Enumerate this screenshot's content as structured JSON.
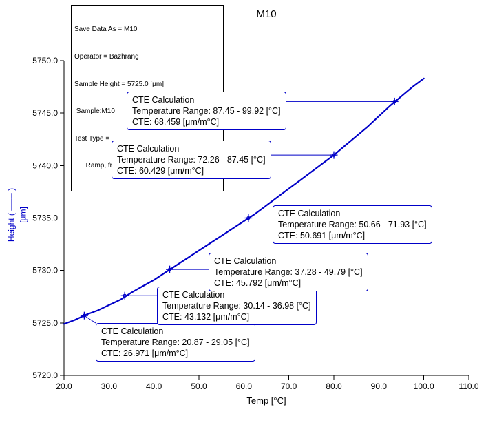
{
  "title": "M10",
  "header_box": {
    "lines": [
      "Save Data As = M10",
      "Operator = Bazhrang",
      "Sample Height = 5725.0 [μm]",
      " Sample:M10",
      "Test Type =",
      "      Ramp, from 20 [°C] to 100 [°C] at 3 [°C/min]"
    ]
  },
  "chart_data": {
    "type": "line",
    "title": "M10",
    "xlabel": "Temp [°C]",
    "ylabel": "Height [μm]",
    "ylabel_lines": [
      "Height ( ─── )",
      "[μm]"
    ],
    "xlim": [
      20,
      110
    ],
    "ylim": [
      5720,
      5750
    ],
    "grid": false,
    "legend": "none",
    "line_color": "#0000C8",
    "x_ticks": [
      20,
      30,
      40,
      50,
      60,
      70,
      80,
      90,
      100,
      110
    ],
    "x_tick_labels": [
      "20.0",
      "30.0",
      "40.0",
      "50.0",
      "60.0",
      "70.0",
      "80.0",
      "90.0",
      "100.0",
      "110.0"
    ],
    "y_ticks": [
      5720,
      5725,
      5730,
      5735,
      5740,
      5745,
      5750
    ],
    "y_tick_labels": [
      "5720.0",
      "5725.0",
      "5730.0",
      "5735.0",
      "5740.0",
      "5745.0",
      "5750.0"
    ],
    "series": [
      {
        "name": "Height",
        "x": [
          20,
          22.5,
          25,
          27.5,
          30,
          32.5,
          35,
          37.5,
          40,
          42.5,
          45,
          47.5,
          50,
          52.5,
          55,
          57.5,
          60,
          62.5,
          65,
          67.5,
          70,
          72.5,
          75,
          77.5,
          80,
          82.5,
          85,
          87.5,
          90,
          92.5,
          95,
          97.5,
          100
        ],
        "y": [
          5724.9,
          5725.3,
          5725.8,
          5726.2,
          5726.7,
          5727.2,
          5727.9,
          5728.5,
          5729.1,
          5729.8,
          5730.5,
          5731.2,
          5731.9,
          5732.6,
          5733.3,
          5734.0,
          5734.7,
          5735.4,
          5736.2,
          5737.0,
          5737.8,
          5738.6,
          5739.4,
          5740.2,
          5741.0,
          5741.9,
          5742.8,
          5743.7,
          5744.7,
          5745.7,
          5746.6,
          5747.5,
          5748.3
        ]
      }
    ],
    "markers": [
      {
        "x": 24.5,
        "y": 5725.7
      },
      {
        "x": 33.5,
        "y": 5727.6
      },
      {
        "x": 43.5,
        "y": 5730.1
      },
      {
        "x": 61.0,
        "y": 5735.0
      },
      {
        "x": 80.0,
        "y": 5741.0
      },
      {
        "x": 93.5,
        "y": 5746.1
      }
    ],
    "annotations": [
      {
        "title": "CTE Calculation",
        "range_text": "Temperature Range: 20.87 - 29.05 [°C]",
        "cte_text": "CTE: 26.971 [μm/m°C]",
        "temp_range": [
          20.87,
          29.05
        ],
        "cte": 26.971,
        "marker_index": 0
      },
      {
        "title": "CTE Calculation",
        "range_text": "Temperature Range: 30.14 - 36.98 [°C]",
        "cte_text": "CTE: 43.132 [μm/m°C]",
        "temp_range": [
          30.14,
          36.98
        ],
        "cte": 43.132,
        "marker_index": 1
      },
      {
        "title": "CTE Calculation",
        "range_text": "Temperature Range: 37.28 - 49.79 [°C]",
        "cte_text": "CTE: 45.792 [μm/m°C]",
        "temp_range": [
          37.28,
          49.79
        ],
        "cte": 45.792,
        "marker_index": 2
      },
      {
        "title": "CTE Calculation",
        "range_text": "Temperature Range: 50.66 - 71.93 [°C]",
        "cte_text": "CTE: 50.691 [μm/m°C]",
        "temp_range": [
          50.66,
          71.93
        ],
        "cte": 50.691,
        "marker_index": 3
      },
      {
        "title": "CTE Calculation",
        "range_text": "Temperature Range: 72.26 - 87.45 [°C]",
        "cte_text": "CTE: 60.429 [μm/m°C]",
        "temp_range": [
          72.26,
          87.45
        ],
        "cte": 60.429,
        "marker_index": 4
      },
      {
        "title": "CTE Calculation",
        "range_text": "Temperature Range: 87.45 - 99.92 [°C]",
        "cte_text": "CTE: 68.459 [μm/m°C]",
        "temp_range": [
          87.45,
          99.92
        ],
        "cte": 68.459,
        "marker_index": 5
      }
    ]
  }
}
